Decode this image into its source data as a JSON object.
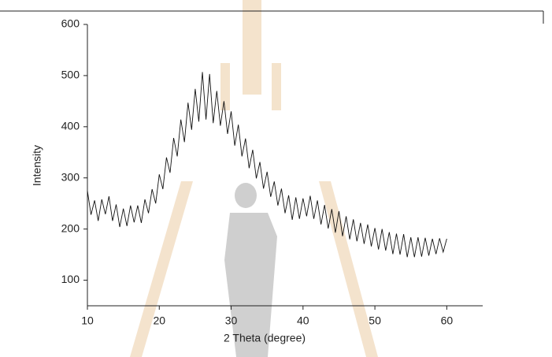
{
  "chart_data": {
    "type": "line",
    "x_label": "2 Theta (degree)",
    "y_label": "Intensity",
    "x": [
      10,
      10.5,
      11,
      11.5,
      12,
      12.5,
      13,
      13.5,
      14,
      14.5,
      15,
      15.5,
      16,
      16.5,
      17,
      17.5,
      18,
      18.5,
      19,
      19.5,
      20,
      20.5,
      21,
      21.5,
      22,
      22.5,
      23,
      23.5,
      24,
      24.5,
      25,
      25.5,
      26,
      26.5,
      27,
      27.5,
      28,
      28.5,
      29,
      29.5,
      30,
      30.5,
      31,
      31.5,
      32,
      32.5,
      33,
      33.5,
      34,
      34.5,
      35,
      35.5,
      36,
      36.5,
      37,
      37.5,
      38,
      38.5,
      39,
      39.5,
      40,
      40.5,
      41,
      41.5,
      42,
      42.5,
      43,
      43.5,
      44,
      44.5,
      45,
      45.5,
      46,
      46.5,
      47,
      47.5,
      48,
      48.5,
      49,
      49.5,
      50,
      50.5,
      51,
      51.5,
      52,
      52.5,
      53,
      53.5,
      54,
      54.5,
      55,
      55.5,
      56,
      56.5,
      57,
      57.5,
      58,
      58.5,
      59,
      59.5,
      60
    ],
    "series": [
      {
        "color": "#111111",
        "values": [
          275,
          228,
          256,
          216,
          258,
          229,
          264,
          216,
          248,
          204,
          240,
          206,
          246,
          213,
          246,
          212,
          258,
          231,
          278,
          250,
          307,
          278,
          340,
          310,
          378,
          342,
          414,
          370,
          447,
          394,
          474,
          410,
          507,
          414,
          503,
          407,
          470,
          402,
          450,
          386,
          430,
          363,
          404,
          342,
          377,
          319,
          355,
          299,
          331,
          279,
          312,
          263,
          293,
          246,
          279,
          231,
          266,
          218,
          262,
          220,
          260,
          225,
          265,
          220,
          256,
          209,
          247,
          201,
          239,
          193,
          235,
          186,
          225,
          180,
          219,
          176,
          212,
          171,
          209,
          166,
          202,
          160,
          200,
          158,
          194,
          151,
          191,
          150,
          190,
          145,
          184,
          145,
          184,
          146,
          183,
          148,
          181,
          151,
          182,
          155,
          181
        ]
      }
    ],
    "xlim": [
      10,
      65
    ],
    "xticks": [
      10,
      20,
      30,
      40,
      50,
      60
    ],
    "ylim": [
      50,
      600
    ],
    "yticks": [
      100,
      200,
      300,
      400,
      500,
      600
    ]
  }
}
